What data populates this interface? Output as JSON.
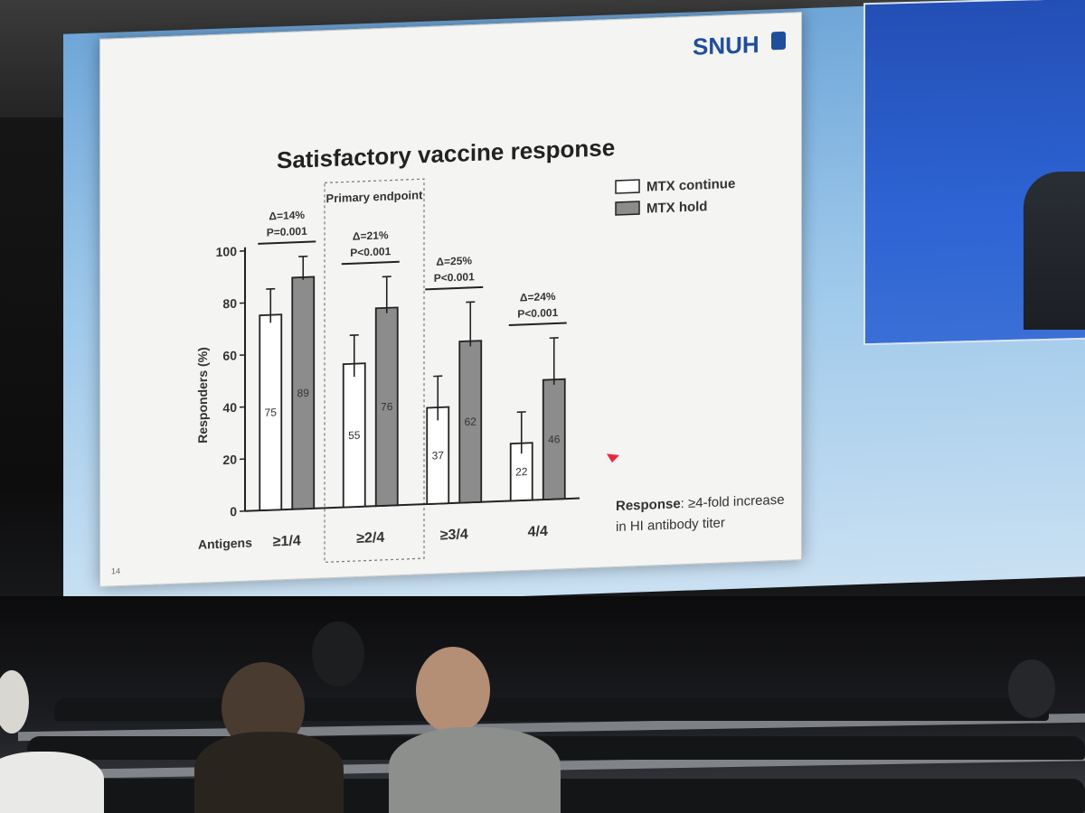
{
  "logo": "SNUH",
  "slide_number": "14",
  "note": {
    "bold": "Response",
    "text": ": ≥4-fold increase",
    "text2": "in HI antibody titer"
  },
  "primary_endpoint_label": "Primary endpoint",
  "colors": {
    "mtx_continue": "#ffffff",
    "mtx_hold": "#8c8c8c",
    "cursor": "#e8283a"
  },
  "chart_data": {
    "type": "bar",
    "title": "Satisfactory vaccine response",
    "xlabel": "Antigens",
    "ylabel": "Responders (%)",
    "ylim": [
      0,
      100
    ],
    "yticks": [
      0,
      20,
      40,
      60,
      80,
      100
    ],
    "categories": [
      "≥1/4",
      "≥2/4",
      "≥3/4",
      "4/4"
    ],
    "series": [
      {
        "name": "MTX continue",
        "values": [
          75,
          55,
          37,
          22
        ],
        "labels": [
          "75",
          "55",
          "37",
          "22"
        ]
      },
      {
        "name": "MTX hold",
        "values": [
          89,
          76,
          62,
          46
        ],
        "labels": [
          "89",
          "76",
          "62",
          "46"
        ]
      }
    ],
    "error_upper": [
      [
        85,
        66,
        49,
        34
      ],
      [
        97,
        88,
        77,
        62
      ]
    ],
    "error_lower": [
      [
        72,
        50,
        32,
        18
      ],
      [
        88,
        74,
        60,
        44
      ]
    ],
    "annotations": [
      {
        "delta": "Δ=14%",
        "p": "P=0.001"
      },
      {
        "delta": "Δ=21%",
        "p": "P<0.001"
      },
      {
        "delta": "Δ=25%",
        "p": "P<0.001"
      },
      {
        "delta": "Δ=24%",
        "p": "P<0.001"
      }
    ],
    "legend_position": "top-right",
    "grid": false
  }
}
